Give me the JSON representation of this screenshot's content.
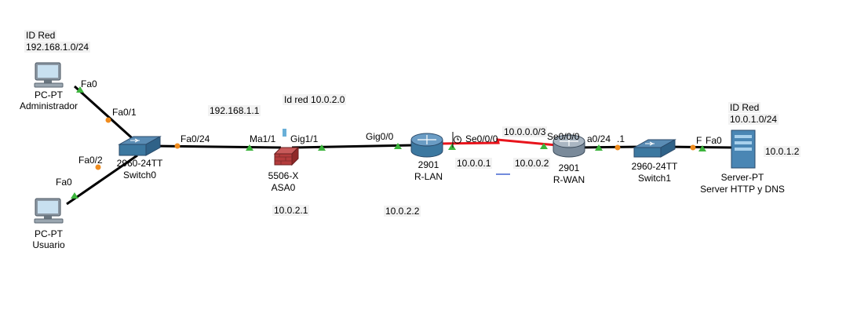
{
  "devices": {
    "pc_admin": {
      "type": "PC-PT",
      "name": "Administrador",
      "net_label": "ID Red",
      "net_value": "192.168.1.0/24",
      "port": "Fa0"
    },
    "pc_user": {
      "type": "PC-PT",
      "name": "Usuario",
      "port": "Fa0"
    },
    "switch0": {
      "type": "2960-24TT",
      "name": "Switch0",
      "port_admin": "Fa0/1",
      "port_user": "Fa0/2",
      "port_uplink": "Fa0/24"
    },
    "asa0": {
      "type": "5506-X",
      "name": "ASA0",
      "port_in": "Ma1/1",
      "port_out": "Gig1/1",
      "ip_in": "192.168.1.1",
      "ip_out": "10.0.2.1",
      "net_label": "Id red 10.0.2.0"
    },
    "r_lan": {
      "type": "2901",
      "name": "R-LAN",
      "port_in": "Gig0/0",
      "port_out": "Se0/0/0",
      "ip_in": "10.0.2.2",
      "ip_out": "10.0.0.1"
    },
    "r_wan": {
      "type": "2901",
      "name": "R-WAN",
      "port_in": "Se0/0/0",
      "port_out": "a0/24",
      "ip_in": "10.0.0.2",
      "ip_out": ".1",
      "net_label": "10.0.0.0/3"
    },
    "switch1": {
      "type": "2960-24TT",
      "name": "Switch1",
      "port": "F"
    },
    "server": {
      "type": "Server-PT",
      "name": "Server HTTP y DNS",
      "net_label": "ID Red",
      "net_value": "10.0.1.0/24",
      "port": "Fa0",
      "ip": "10.0.1.2"
    }
  },
  "colors": {
    "link": "#000000",
    "serial": "#e8141c",
    "port_up": "#3cb43c",
    "port_amber": "#f08c1e",
    "device_blue": "#3c78a0",
    "asa_red": "#b43c3c",
    "ip_underline": "#1e46c8"
  }
}
